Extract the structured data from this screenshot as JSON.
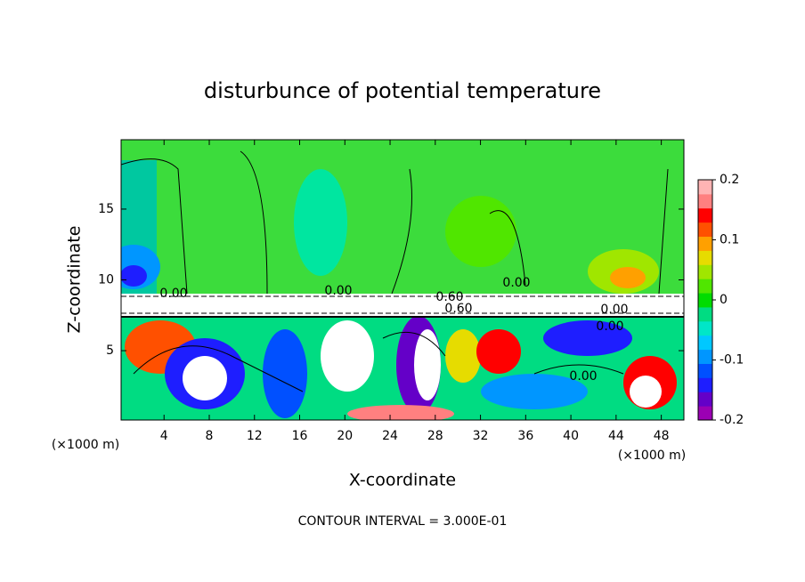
{
  "chart_data": {
    "type": "heatmap",
    "title": "disturbunce of potential temperature",
    "x_label": "X-coordinate",
    "y_label": "Z-coordinate",
    "x_unit_label": "(×1000 m)",
    "y_unit_label": "(×1000 m)",
    "footer": "CONTOUR INTERVAL = 3.000E-01",
    "xlim": [
      0.2,
      50
    ],
    "xticks": [
      4,
      8,
      12,
      16,
      20,
      24,
      28,
      32,
      36,
      40,
      44,
      48
    ],
    "ylim": [
      0.1,
      19.9
    ],
    "yticks": [
      5,
      10,
      15
    ],
    "clim": [
      -0.2,
      0.2
    ],
    "cticks": [
      -0.2,
      -0.1,
      0,
      0.1,
      0.2
    ],
    "colors": [
      "#9b00b4",
      "#6400c8",
      "#1e1eff",
      "#0050ff",
      "#0096ff",
      "#00c8ff",
      "#00e6c8",
      "#00dc82",
      "#00dc00",
      "#50e600",
      "#a0e600",
      "#e6dc00",
      "#ffa000",
      "#ff5000",
      "#ff0000",
      "#ff8080",
      "#ffb4b4"
    ],
    "annotations": [
      "0.00",
      "0.60",
      "0.60",
      "0.00",
      "0.00",
      "0.00",
      "0.00",
      "0.00"
    ]
  }
}
